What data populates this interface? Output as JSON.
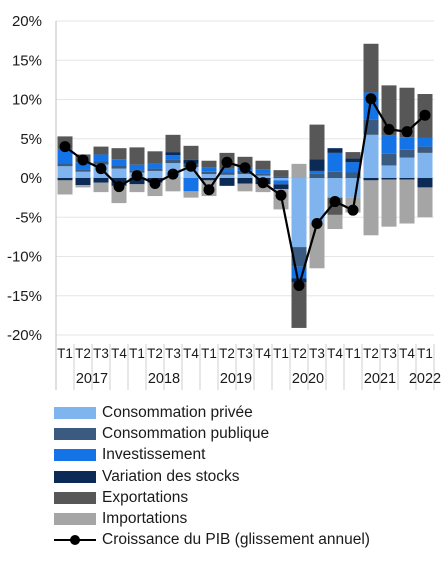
{
  "chart_data": {
    "type": "bar",
    "stacked": true,
    "y_ticks": [
      "20%",
      "15%",
      "10%",
      "5%",
      "0%",
      "-5%",
      "-10%",
      "-15%",
      "-20%"
    ],
    "ylim": [
      -20,
      20
    ],
    "categories": [
      "T1",
      "T2",
      "T3",
      "T4",
      "T1",
      "T2",
      "T3",
      "T4",
      "T1",
      "T2",
      "T3",
      "T4",
      "T1",
      "T2",
      "T3",
      "T4",
      "T1",
      "T2",
      "T3",
      "T4",
      "T1"
    ],
    "years": [
      {
        "label": "2017",
        "start": 0,
        "end": 3
      },
      {
        "label": "2018",
        "start": 4,
        "end": 7
      },
      {
        "label": "2019",
        "start": 8,
        "end": 11
      },
      {
        "label": "2020",
        "start": 12,
        "end": 15
      },
      {
        "label": "2021",
        "start": 16,
        "end": 19
      },
      {
        "label": "2022",
        "start": 20,
        "end": 20
      }
    ],
    "series": [
      {
        "name": "Consommation privée",
        "color": "#7fb4ee",
        "values": [
          1.5,
          0.8,
          1.7,
          1.2,
          0.7,
          0.9,
          1.9,
          1.4,
          0.5,
          0.4,
          0.5,
          0.3,
          -0.3,
          -8.8,
          -5.7,
          -2.5,
          -2.5,
          5.5,
          1.6,
          2.6,
          3.2
        ]
      },
      {
        "name": "Consommation publique",
        "color": "#3a5a80",
        "values": [
          0.4,
          0.3,
          0.4,
          0.4,
          0.3,
          0.3,
          0.4,
          0.4,
          0.3,
          0.3,
          0.4,
          0.3,
          0.2,
          -2.5,
          0.6,
          0.8,
          0.7,
          1.9,
          1.5,
          1.0,
          0.8
        ]
      },
      {
        "name": "Investissement",
        "color": "#1473e6",
        "values": [
          1.8,
          0.9,
          0.9,
          0.8,
          0.7,
          0.6,
          0.6,
          -1.7,
          0.5,
          0.5,
          0.5,
          0.5,
          -0.5,
          -1.5,
          0.3,
          2.4,
          1.3,
          3.5,
          2.3,
          1.6,
          1.1
        ]
      },
      {
        "name": "Variation des stocks",
        "color": "#0b2a55",
        "values": [
          -0.3,
          -0.9,
          -0.6,
          -1.0,
          -0.8,
          -0.6,
          0.4,
          0.5,
          -0.3,
          -1.0,
          -0.7,
          -0.8,
          -0.6,
          -0.5,
          1.5,
          0.6,
          0.5,
          -0.3,
          -0.2,
          -0.2,
          -1.2
        ]
      },
      {
        "name": "Exportations",
        "color": "#575757",
        "values": [
          1.6,
          1.0,
          1.0,
          1.4,
          2.2,
          1.6,
          2.2,
          1.8,
          0.9,
          2.0,
          1.3,
          1.1,
          0.8,
          -5.8,
          4.4,
          -2.2,
          0.8,
          6.2,
          6.4,
          6.3,
          5.6
        ]
      },
      {
        "name": "Importations",
        "color": "#a5a5a5",
        "values": [
          -1.8,
          -0.3,
          -1.2,
          -2.2,
          -1.0,
          -1.7,
          -1.7,
          -0.8,
          -2.0,
          0.0,
          -1.0,
          -1.0,
          -2.6,
          1.8,
          -5.8,
          -1.8,
          -1.9,
          -7.0,
          -6.0,
          -5.6,
          -3.8
        ]
      }
    ],
    "line": {
      "name": "Croissance du PIB (glissement annuel)",
      "color": "#000000",
      "values": [
        4.0,
        2.3,
        1.2,
        -1.1,
        0.3,
        -0.7,
        0.5,
        1.5,
        -1.5,
        2.0,
        1.3,
        -0.6,
        -2.2,
        -13.7,
        -5.8,
        -3.0,
        -4.1,
        10.1,
        6.2,
        5.9,
        8.0
      ]
    }
  },
  "legend": [
    {
      "label": "Consommation privée",
      "color": "#7fb4ee"
    },
    {
      "label": "Consommation publique",
      "color": "#3a5a80"
    },
    {
      "label": "Investissement",
      "color": "#1473e6"
    },
    {
      "label": "Variation des stocks",
      "color": "#0b2a55"
    },
    {
      "label": "Exportations",
      "color": "#575757"
    },
    {
      "label": "Importations",
      "color": "#a5a5a5"
    }
  ],
  "legend_line_label": "Croissance du PIB (glissement annuel)"
}
